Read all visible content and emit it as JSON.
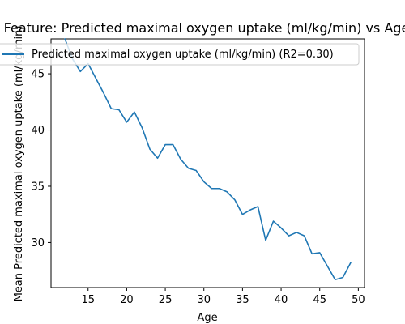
{
  "chart_data": {
    "type": "line",
    "title": "Feature: Predicted maximal oxygen uptake (ml/kg/min) vs Age",
    "xlabel": "Age",
    "ylabel": "Mean Predicted maximal oxygen uptake (ml/kg/min)",
    "xlim": [
      10.2,
      50.8
    ],
    "ylim": [
      26.0,
      48.1
    ],
    "xticks": [
      15,
      20,
      25,
      30,
      35,
      40,
      45,
      50
    ],
    "yticks": [
      30,
      35,
      40,
      45
    ],
    "grid": false,
    "legend_position": "top-left",
    "series": [
      {
        "name": "Predicted maximal oxygen uptake (ml/kg/min) (R2=0.30)",
        "color": "#1f77b4",
        "x": [
          12,
          13,
          14,
          15,
          16,
          17,
          18,
          19,
          20,
          21,
          22,
          23,
          24,
          25,
          26,
          27,
          28,
          29,
          30,
          31,
          32,
          33,
          34,
          35,
          36,
          37,
          38,
          39,
          40,
          41,
          42,
          43,
          44,
          45,
          46,
          47,
          48,
          49
        ],
        "values": [
          48.1,
          46.3,
          45.2,
          45.9,
          44.6,
          43.3,
          41.9,
          41.8,
          40.7,
          41.6,
          40.2,
          38.3,
          37.5,
          38.7,
          38.7,
          37.4,
          36.6,
          36.4,
          35.4,
          34.8,
          34.8,
          34.5,
          33.8,
          32.5,
          32.9,
          33.2,
          30.2,
          31.9,
          31.3,
          30.6,
          30.9,
          30.6,
          29.0,
          29.1,
          27.9,
          26.7,
          26.9,
          28.2
        ]
      }
    ]
  }
}
